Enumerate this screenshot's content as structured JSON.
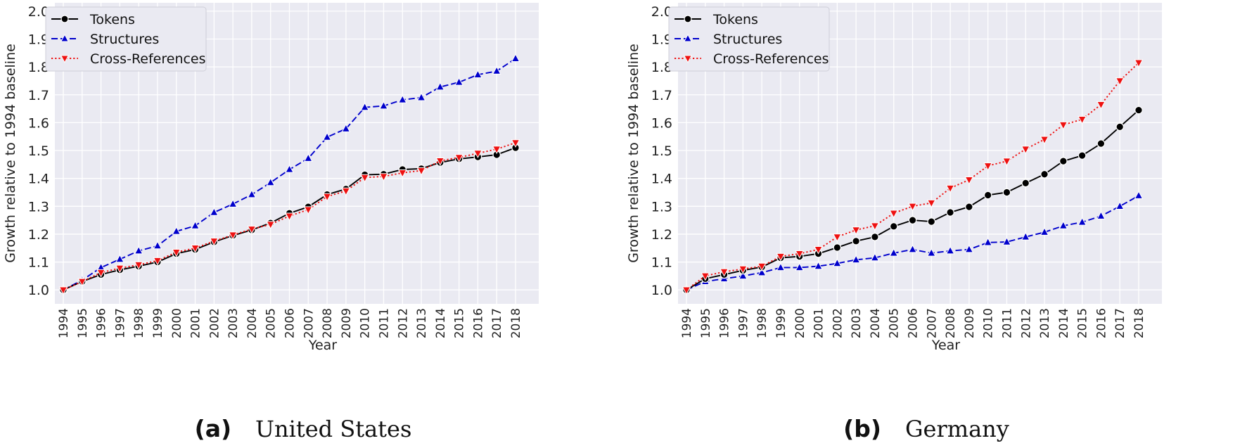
{
  "chart_data": [
    {
      "type": "line",
      "panel_letter": "(a)",
      "caption": "United States",
      "xlabel": "Year",
      "ylabel": "Growth relative to 1994 baseline",
      "ylim": [
        0.95,
        2.03
      ],
      "yticks": [
        "1.0",
        "1.1",
        "1.2",
        "1.3",
        "1.4",
        "1.5",
        "1.6",
        "1.7",
        "1.8",
        "1.9",
        "2.0"
      ],
      "grid": true,
      "legend_position": "top-left",
      "x": [
        "1994",
        "1995",
        "1996",
        "1997",
        "1998",
        "1999",
        "2000",
        "2001",
        "2002",
        "2003",
        "2004",
        "2005",
        "2006",
        "2007",
        "2008",
        "2009",
        "2010",
        "2011",
        "2012",
        "2013",
        "2014",
        "2015",
        "2016",
        "2017",
        "2018"
      ],
      "series": [
        {
          "name": "Tokens",
          "color": "#000000",
          "marker": "circle",
          "linestyle": "solid",
          "values": [
            1.0,
            1.03,
            1.055,
            1.072,
            1.085,
            1.1,
            1.13,
            1.145,
            1.172,
            1.195,
            1.215,
            1.24,
            1.275,
            1.298,
            1.342,
            1.362,
            1.413,
            1.415,
            1.432,
            1.435,
            1.457,
            1.47,
            1.477,
            1.485,
            1.51
          ]
        },
        {
          "name": "Structures",
          "color": "#0000cc",
          "marker": "triangle-up",
          "linestyle": "dashed",
          "values": [
            1.0,
            1.035,
            1.08,
            1.11,
            1.14,
            1.158,
            1.21,
            1.23,
            1.278,
            1.308,
            1.342,
            1.385,
            1.432,
            1.472,
            1.548,
            1.578,
            1.655,
            1.66,
            1.682,
            1.69,
            1.728,
            1.745,
            1.772,
            1.785,
            1.83
          ]
        },
        {
          "name": "Cross-References",
          "color": "#ee1111",
          "marker": "triangle-down",
          "linestyle": "dotted",
          "values": [
            1.0,
            1.03,
            1.062,
            1.078,
            1.09,
            1.105,
            1.135,
            1.15,
            1.175,
            1.197,
            1.218,
            1.235,
            1.265,
            1.288,
            1.335,
            1.355,
            1.403,
            1.407,
            1.42,
            1.428,
            1.463,
            1.475,
            1.49,
            1.505,
            1.528
          ]
        }
      ]
    },
    {
      "type": "line",
      "panel_letter": "(b)",
      "caption": "Germany",
      "xlabel": "Year",
      "ylabel": "Growth relative to 1994 baseline",
      "ylim": [
        0.95,
        2.03
      ],
      "yticks": [
        "1.0",
        "1.1",
        "1.2",
        "1.3",
        "1.4",
        "1.5",
        "1.6",
        "1.7",
        "1.8",
        "1.9",
        "2.0"
      ],
      "grid": true,
      "legend_position": "top-left",
      "x": [
        "1994",
        "1995",
        "1996",
        "1997",
        "1998",
        "1999",
        "2000",
        "2001",
        "2002",
        "2003",
        "2004",
        "2005",
        "2006",
        "2007",
        "2008",
        "2009",
        "2010",
        "2011",
        "2012",
        "2013",
        "2014",
        "2015",
        "2016",
        "2017",
        "2018"
      ],
      "series": [
        {
          "name": "Tokens",
          "color": "#000000",
          "marker": "circle",
          "linestyle": "solid",
          "values": [
            1.0,
            1.04,
            1.055,
            1.07,
            1.082,
            1.115,
            1.12,
            1.13,
            1.152,
            1.175,
            1.19,
            1.228,
            1.25,
            1.245,
            1.278,
            1.298,
            1.34,
            1.35,
            1.383,
            1.415,
            1.462,
            1.482,
            1.525,
            1.585,
            1.645
          ]
        },
        {
          "name": "Structures",
          "color": "#0000cc",
          "marker": "triangle-up",
          "linestyle": "dashed",
          "values": [
            1.0,
            1.03,
            1.04,
            1.05,
            1.062,
            1.08,
            1.08,
            1.085,
            1.095,
            1.108,
            1.115,
            1.132,
            1.145,
            1.132,
            1.14,
            1.145,
            1.17,
            1.172,
            1.19,
            1.207,
            1.23,
            1.243,
            1.265,
            1.3,
            1.338
          ]
        },
        {
          "name": "Cross-References",
          "color": "#ee1111",
          "marker": "triangle-down",
          "linestyle": "dotted",
          "values": [
            1.0,
            1.05,
            1.065,
            1.075,
            1.085,
            1.12,
            1.13,
            1.145,
            1.19,
            1.215,
            1.23,
            1.275,
            1.3,
            1.312,
            1.365,
            1.395,
            1.445,
            1.462,
            1.505,
            1.54,
            1.592,
            1.612,
            1.665,
            1.75,
            1.815
          ]
        }
      ]
    }
  ]
}
